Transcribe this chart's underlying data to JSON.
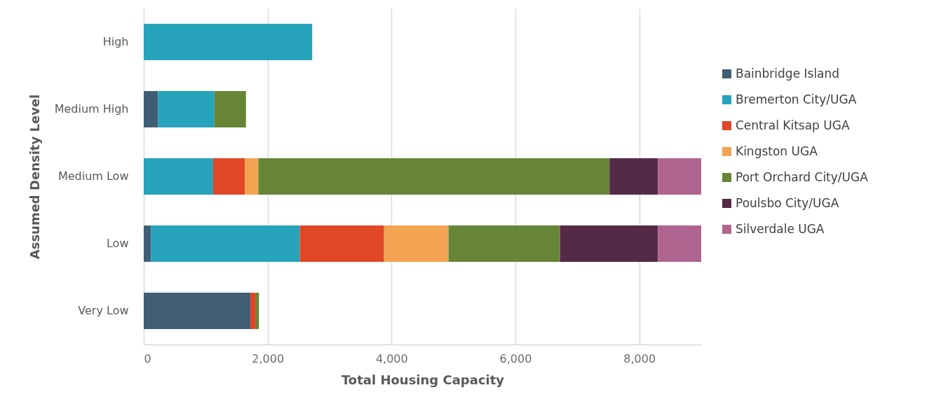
{
  "chart_data": {
    "type": "bar",
    "orientation": "horizontal",
    "stacked": true,
    "xlabel": "Total Housing Capacity",
    "ylabel": "Assumed Density Level",
    "categories": [
      "High",
      "Medium High",
      "Medium Low",
      "Low",
      "Very Low"
    ],
    "series": [
      {
        "name": "Bainbridge Island",
        "color": "#3f5e73",
        "values": [
          null,
          230,
          null,
          120,
          1720
        ]
      },
      {
        "name": "Bremerton City/UGA",
        "color": "#27a3bb",
        "values": [
          2720,
          910,
          1120,
          2400,
          null
        ]
      },
      {
        "name": "Central Kitsap UGA",
        "color": "#e04726",
        "values": [
          null,
          null,
          510,
          1360,
          90
        ]
      },
      {
        "name": "Kingston UGA",
        "color": "#f4a353",
        "values": [
          null,
          null,
          220,
          1040,
          null
        ]
      },
      {
        "name": "Port Orchard City/UGA",
        "color": "#668537",
        "values": [
          null,
          510,
          5670,
          1800,
          50
        ]
      },
      {
        "name": "Poulsbo City/UGA",
        "color": "#552a47",
        "values": [
          null,
          null,
          780,
          1580,
          null
        ]
      },
      {
        "name": "Silverdale UGA",
        "color": "#b06490",
        "values": [
          null,
          null,
          700,
          700,
          null
        ]
      }
    ],
    "xlim": [
      0,
      9000
    ],
    "xticks": [
      0,
      {
        "value": 2000,
        "label": "2,000"
      },
      {
        "value": 4000,
        "label": "4,000"
      },
      {
        "value": 6000,
        "label": "6,000"
      },
      {
        "value": 8000,
        "label": "8,000"
      }
    ],
    "grid": "x",
    "legend": "right"
  }
}
